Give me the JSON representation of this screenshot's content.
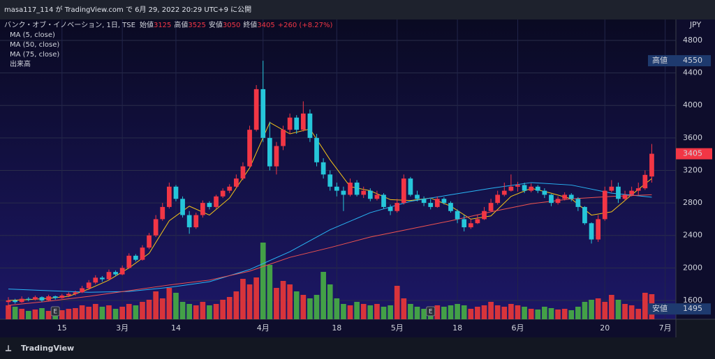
{
  "header": "masa117_114 が TradingView.com で 6月 29, 2022 20:29 UTC+9 に公開",
  "footer": "TradingView",
  "chart_data": {
    "type": "candlestick",
    "symbol": "バンク・オブ・イノベーション, 1日, TSE",
    "ohlc_labels": [
      "始値",
      "高値",
      "安値",
      "終値"
    ],
    "change": "+260 (+8.27%)",
    "indicators": [
      "MA (5, close)",
      "MA (50, close)",
      "MA (75, close)",
      "出来高"
    ],
    "currency": "JPY",
    "up_color": "#f23645",
    "down_color": "#26c6da",
    "volume_up_color": "#d8343b",
    "volume_down_color": "#43a047",
    "xlim": [
      -1.25,
      99.6
    ],
    "ylim": [
      1368,
      5057
    ],
    "yticks": [
      1600,
      2000,
      2400,
      2800,
      3200,
      3600,
      4000,
      4400,
      4800
    ],
    "xticks": [
      {
        "value": 8,
        "label": "15"
      },
      {
        "value": 17,
        "label": "3月"
      },
      {
        "value": 25,
        "label": "14"
      },
      {
        "value": 38,
        "label": "4月"
      },
      {
        "value": 49,
        "label": "18"
      },
      {
        "value": 58,
        "label": "5月"
      },
      {
        "value": 67,
        "label": "18"
      },
      {
        "value": 76,
        "label": "6月"
      },
      {
        "value": 89,
        "label": "20"
      },
      {
        "value": 98,
        "label": "7月"
      }
    ],
    "candles": [
      [
        1580,
        1640,
        1495,
        1600
      ],
      [
        1600,
        1620,
        1560,
        1580
      ],
      [
        1580,
        1650,
        1570,
        1620
      ],
      [
        1620,
        1640,
        1590,
        1610
      ],
      [
        1610,
        1660,
        1600,
        1640
      ],
      [
        1640,
        1650,
        1580,
        1600
      ],
      [
        1600,
        1670,
        1590,
        1650
      ],
      [
        1650,
        1660,
        1610,
        1630
      ],
      [
        1630,
        1680,
        1620,
        1660
      ],
      [
        1660,
        1700,
        1640,
        1680
      ],
      [
        1680,
        1720,
        1660,
        1700
      ],
      [
        1700,
        1780,
        1690,
        1750
      ],
      [
        1750,
        1850,
        1730,
        1820
      ],
      [
        1820,
        1910,
        1800,
        1880
      ],
      [
        1880,
        1900,
        1830,
        1860
      ],
      [
        1860,
        1980,
        1850,
        1950
      ],
      [
        1950,
        1970,
        1900,
        1920
      ],
      [
        1920,
        2030,
        1910,
        2000
      ],
      [
        2000,
        2180,
        1990,
        2150
      ],
      [
        2150,
        2170,
        2080,
        2100
      ],
      [
        2100,
        2280,
        2090,
        2250
      ],
      [
        2250,
        2430,
        2230,
        2400
      ],
      [
        2400,
        2650,
        2380,
        2600
      ],
      [
        2600,
        2800,
        2580,
        2750
      ],
      [
        2750,
        3050,
        2730,
        3000
      ],
      [
        3000,
        3020,
        2820,
        2850
      ],
      [
        2850,
        2880,
        2620,
        2650
      ],
      [
        2650,
        2700,
        2420,
        2500
      ],
      [
        2500,
        2680,
        2480,
        2650
      ],
      [
        2650,
        2830,
        2620,
        2800
      ],
      [
        2800,
        2820,
        2720,
        2750
      ],
      [
        2750,
        2900,
        2730,
        2880
      ],
      [
        2880,
        2980,
        2860,
        2950
      ],
      [
        2950,
        3030,
        2920,
        3000
      ],
      [
        3000,
        3150,
        2980,
        3100
      ],
      [
        3100,
        3300,
        3080,
        3250
      ],
      [
        3250,
        3750,
        3230,
        3700
      ],
      [
        3700,
        4250,
        3680,
        4200
      ],
      [
        4200,
        4550,
        3550,
        3600
      ],
      [
        3600,
        3800,
        3200,
        3250
      ],
      [
        3250,
        3550,
        3150,
        3500
      ],
      [
        3500,
        3750,
        3450,
        3700
      ],
      [
        3700,
        3900,
        3650,
        3850
      ],
      [
        3850,
        3880,
        3650,
        3700
      ],
      [
        3700,
        4050,
        3680,
        3900
      ],
      [
        3900,
        3950,
        3550,
        3600
      ],
      [
        3600,
        3650,
        3250,
        3300
      ],
      [
        3300,
        3350,
        3100,
        3150
      ],
      [
        3150,
        3200,
        2950,
        3000
      ],
      [
        3000,
        3050,
        2880,
        2950
      ],
      [
        2950,
        3000,
        2700,
        2900
      ],
      [
        2900,
        3100,
        2880,
        3050
      ],
      [
        3050,
        3080,
        2880,
        2900
      ],
      [
        2900,
        3000,
        2860,
        2950
      ],
      [
        2950,
        2980,
        2820,
        2850
      ],
      [
        2850,
        2950,
        2830,
        2900
      ],
      [
        2900,
        2920,
        2730,
        2750
      ],
      [
        2750,
        2780,
        2650,
        2700
      ],
      [
        2700,
        2850,
        2680,
        2800
      ],
      [
        2800,
        3150,
        2780,
        3100
      ],
      [
        3100,
        3120,
        2880,
        2900
      ],
      [
        2900,
        2950,
        2820,
        2850
      ],
      [
        2850,
        2880,
        2760,
        2800
      ],
      [
        2800,
        2850,
        2720,
        2750
      ],
      [
        2750,
        2880,
        2740,
        2850
      ],
      [
        2850,
        2870,
        2780,
        2800
      ],
      [
        2800,
        2820,
        2680,
        2700
      ],
      [
        2700,
        2720,
        2550,
        2600
      ],
      [
        2600,
        2650,
        2450,
        2500
      ],
      [
        2500,
        2600,
        2480,
        2550
      ],
      [
        2550,
        2650,
        2540,
        2600
      ],
      [
        2600,
        2750,
        2590,
        2700
      ],
      [
        2700,
        2850,
        2690,
        2800
      ],
      [
        2800,
        2950,
        2780,
        2900
      ],
      [
        2900,
        3050,
        2880,
        2950
      ],
      [
        2950,
        3150,
        2940,
        3000
      ],
      [
        3000,
        3060,
        2940,
        3020
      ],
      [
        3020,
        3050,
        2920,
        2950
      ],
      [
        2950,
        3040,
        2930,
        3000
      ],
      [
        3000,
        3020,
        2920,
        2950
      ],
      [
        2950,
        2980,
        2860,
        2900
      ],
      [
        2900,
        2910,
        2760,
        2800
      ],
      [
        2800,
        2880,
        2780,
        2850
      ],
      [
        2850,
        2930,
        2830,
        2900
      ],
      [
        2900,
        2920,
        2820,
        2850
      ],
      [
        2850,
        2870,
        2700,
        2750
      ],
      [
        2750,
        2760,
        2530,
        2550
      ],
      [
        2550,
        2560,
        2300,
        2350
      ],
      [
        2350,
        2650,
        2320,
        2600
      ],
      [
        2600,
        3000,
        2580,
        2950
      ],
      [
        2950,
        3080,
        2930,
        3000
      ],
      [
        3000,
        3050,
        2800,
        2850
      ],
      [
        2850,
        2950,
        2830,
        2900
      ],
      [
        2900,
        3000,
        2880,
        2950
      ],
      [
        2950,
        3050,
        2900,
        2980
      ],
      [
        2980,
        3200,
        2960,
        3145
      ],
      [
        3125,
        3525,
        3050,
        3405
      ]
    ],
    "volume": [
      20,
      18,
      15,
      12,
      14,
      16,
      12,
      14,
      13,
      15,
      16,
      20,
      18,
      22,
      18,
      20,
      15,
      18,
      22,
      20,
      25,
      28,
      40,
      30,
      45,
      38,
      25,
      22,
      20,
      25,
      20,
      22,
      28,
      32,
      40,
      58,
      50,
      60,
      110,
      78,
      45,
      55,
      50,
      40,
      35,
      30,
      35,
      68,
      50,
      30,
      22,
      20,
      25,
      22,
      20,
      22,
      18,
      20,
      48,
      30,
      22,
      18,
      15,
      14,
      20,
      18,
      20,
      22,
      20,
      15,
      18,
      20,
      25,
      20,
      18,
      22,
      20,
      18,
      15,
      14,
      18,
      16,
      14,
      15,
      13,
      18,
      25,
      28,
      30,
      25,
      35,
      28,
      22,
      20,
      15,
      38,
      36
    ],
    "moving_averages": [
      {
        "name": "MA (5, close)",
        "color": "#f5c518",
        "x": [
          0,
          3,
          6,
          9,
          12,
          15,
          18,
          21,
          24,
          27,
          30,
          33,
          36,
          39,
          42,
          45,
          48,
          51,
          54,
          57,
          60,
          63,
          66,
          69,
          72,
          75,
          78,
          81,
          84,
          87,
          90,
          93,
          96
        ],
        "values": [
          1600,
          1610,
          1625,
          1650,
          1740,
          1850,
          2000,
          2180,
          2580,
          2760,
          2650,
          2860,
          3230,
          3790,
          3650,
          3710,
          3330,
          3000,
          2950,
          2840,
          2830,
          2860,
          2760,
          2600,
          2640,
          2880,
          2980,
          2920,
          2850,
          2650,
          2690,
          2900,
          3100
        ]
      },
      {
        "name": "MA (50, close)",
        "color": "#29b6f6",
        "x": [
          0,
          6,
          12,
          18,
          24,
          30,
          36,
          42,
          48,
          54,
          60,
          66,
          72,
          78,
          84,
          90,
          96
        ],
        "values": [
          1740,
          1720,
          1700,
          1710,
          1760,
          1830,
          1980,
          2200,
          2470,
          2680,
          2820,
          2900,
          2980,
          3050,
          3020,
          2920,
          2870
        ]
      },
      {
        "name": "MA (75, close)",
        "color": "#ef5350",
        "x": [
          0,
          6,
          12,
          18,
          24,
          30,
          36,
          42,
          48,
          54,
          60,
          66,
          72,
          78,
          84,
          90,
          96
        ],
        "values": [
          1540,
          1590,
          1650,
          1720,
          1790,
          1850,
          1960,
          2130,
          2250,
          2380,
          2480,
          2580,
          2690,
          2790,
          2850,
          2880,
          2900
        ]
      }
    ],
    "events": [
      {
        "index": 7,
        "label": "E"
      },
      {
        "index": 63,
        "label": "E"
      }
    ]
  }
}
